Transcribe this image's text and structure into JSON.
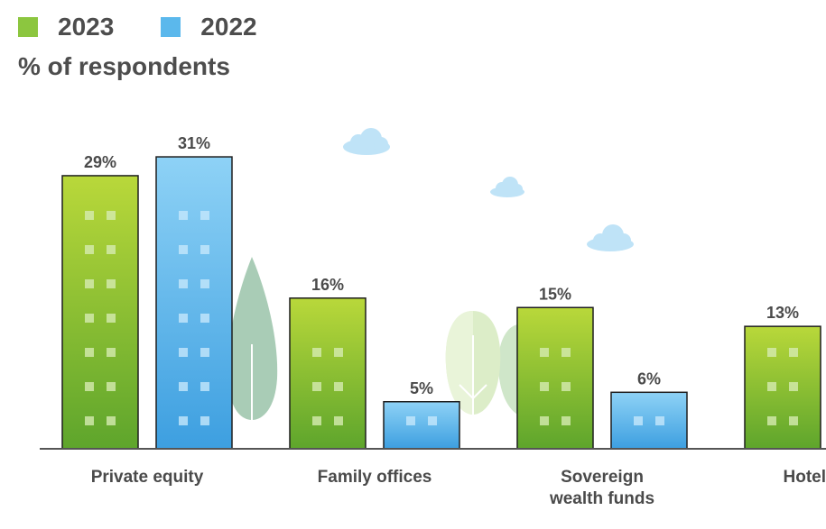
{
  "chart_data": {
    "type": "bar",
    "title": "",
    "ylabel": "% of respondents",
    "xlabel": "",
    "ylim": [
      0,
      31
    ],
    "grid": false,
    "legend_placement": "top-left",
    "categories": [
      "Private equity",
      "Family offices",
      "Sovereign wealth funds",
      "Hotel"
    ],
    "category_lines": [
      [
        "Private equity"
      ],
      [
        "Family offices"
      ],
      [
        "Sovereign",
        "wealth funds"
      ],
      [
        "Hotel"
      ]
    ],
    "series": [
      {
        "name": "2023",
        "color": "#8cc63f",
        "values": [
          29,
          16,
          15,
          13
        ],
        "labels": [
          "29%",
          "16%",
          "15%",
          "13%"
        ]
      },
      {
        "name": "2022",
        "color": "#5bb8ec",
        "values": [
          31,
          5,
          6,
          null
        ],
        "labels": [
          "31%",
          "5%",
          "6%",
          ""
        ]
      }
    ]
  }
}
